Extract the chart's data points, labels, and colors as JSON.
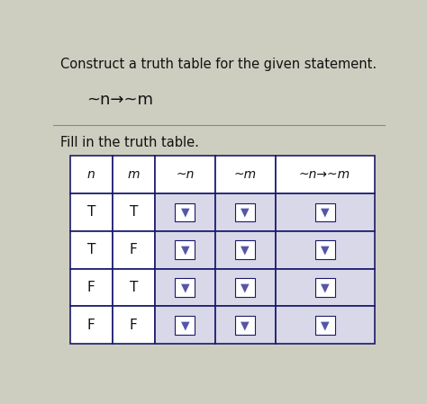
{
  "title": "Construct a truth table for the given statement.",
  "statement": "~n→~m",
  "subtitle": "Fill in the truth table.",
  "col_headers": [
    "n",
    "m",
    "~n",
    "~m",
    "~n→~m"
  ],
  "rows": [
    [
      "T",
      "T",
      "▼",
      "▼",
      "▼"
    ],
    [
      "T",
      "F",
      "▼",
      "▼",
      "▼"
    ],
    [
      "F",
      "T",
      "▼",
      "▼",
      "▼"
    ],
    [
      "F",
      "F",
      "▼",
      "▼",
      "▼"
    ]
  ],
  "bg_color": "#cecec0",
  "table_bg_white": "#ffffff",
  "table_bg_light": "#d8d8e8",
  "header_bg": "#ffffff",
  "cell_border": "#1a1a6e",
  "arrow_color": "#5555aa",
  "text_color": "#111111",
  "title_fontsize": 10.5,
  "statement_fontsize": 12,
  "subtitle_fontsize": 10.5,
  "cell_fontsize": 11,
  "header_fontsize": 10,
  "fig_width": 4.74,
  "fig_height": 4.49,
  "dpi": 100
}
